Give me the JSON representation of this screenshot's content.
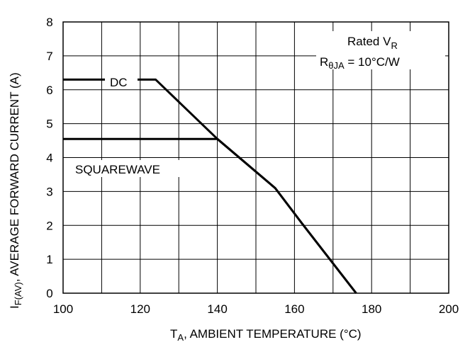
{
  "chart_data": {
    "type": "line",
    "x_label": {
      "main": "T",
      "sub": "A",
      "rest": ", AMBIENT TEMPERATURE (°C)"
    },
    "y_label": {
      "main": "I",
      "sub": "F(AV)",
      "rest": ", AVERAGE FORWARD CURRENT (A)"
    },
    "xlim": [
      100,
      200
    ],
    "ylim": [
      0,
      8
    ],
    "x_ticks": [
      "100",
      "120",
      "140",
      "160",
      "180",
      "200"
    ],
    "y_ticks": [
      "0",
      "1",
      "2",
      "3",
      "4",
      "5",
      "6",
      "7",
      "8"
    ],
    "x_grid_step": 10,
    "y_grid_step": 1,
    "grid": true,
    "series": [
      {
        "name": "DC",
        "points": [
          [
            100,
            6.3
          ],
          [
            124,
            6.3
          ],
          [
            140,
            4.55
          ],
          [
            155,
            3.1
          ],
          [
            162,
            2.05
          ],
          [
            176,
            0
          ]
        ]
      },
      {
        "name": "SQUAREWAVE",
        "points": [
          [
            100,
            4.55
          ],
          [
            140,
            4.55
          ],
          [
            155,
            3.1
          ],
          [
            162,
            2.05
          ],
          [
            176,
            0
          ]
        ]
      }
    ],
    "annotation": {
      "line1_main": "Rated V",
      "line1_sub": "R",
      "line2_main": "R",
      "line2_sub": "θJA",
      "line2_rest": " = 10°C/W"
    }
  }
}
